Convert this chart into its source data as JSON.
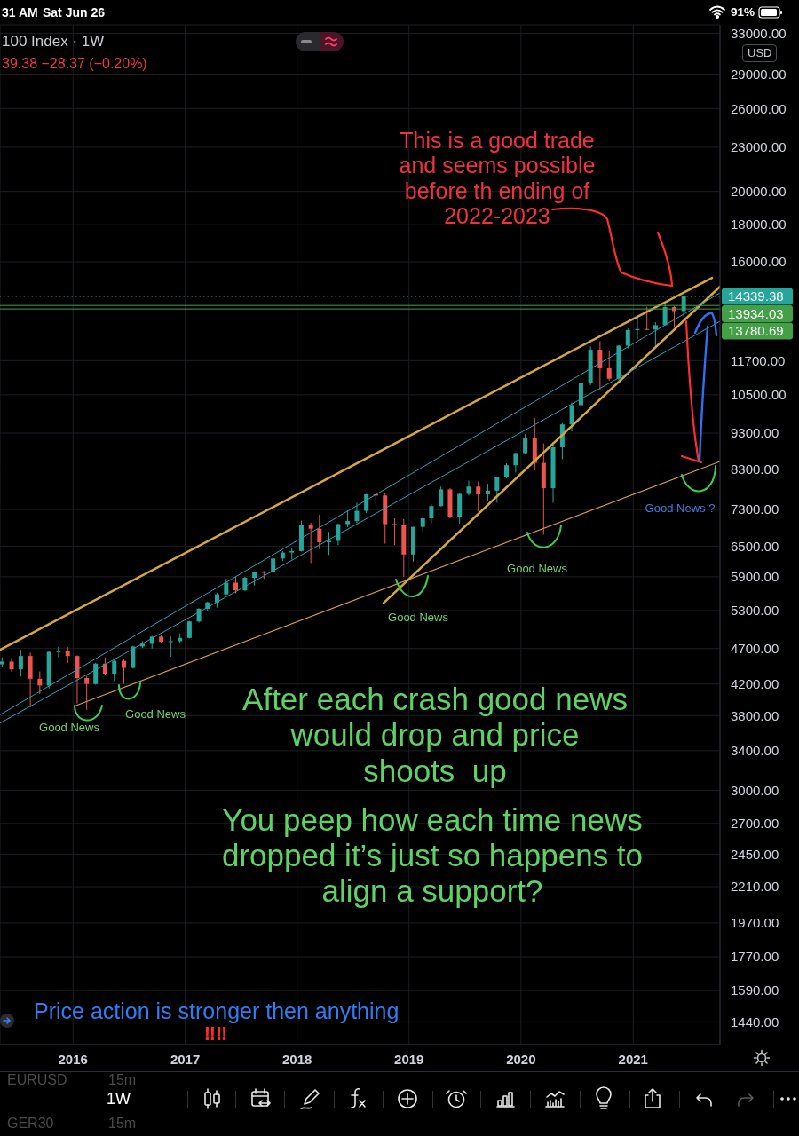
{
  "chart_data": {
    "type": "candlestick",
    "title": "100 Index · 1W",
    "subtitle": "39.38 −28.37 (−0.20%)",
    "ylabel": "USD",
    "x": [
      "2015-05-15",
      "2015-06-15",
      "2015-07-15",
      "2015-08-15",
      "2015-09-15",
      "2015-10-15",
      "2015-11-15",
      "2015-12-15",
      "2016-01-15",
      "2016-02-15",
      "2016-03-15",
      "2016-04-15",
      "2016-05-15",
      "2016-06-15",
      "2016-07-15",
      "2016-08-15",
      "2016-09-15",
      "2016-10-15",
      "2016-11-15",
      "2016-12-15",
      "2017-01-15",
      "2017-02-15",
      "2017-03-15",
      "2017-04-15",
      "2017-05-15",
      "2017-06-15",
      "2017-07-15",
      "2017-08-15",
      "2017-09-15",
      "2017-10-15",
      "2017-11-15",
      "2017-12-15",
      "2018-01-15",
      "2018-02-15",
      "2018-03-15",
      "2018-04-15",
      "2018-05-15",
      "2018-06-15",
      "2018-07-15",
      "2018-08-15",
      "2018-09-15",
      "2018-10-15",
      "2018-11-15",
      "2018-12-15",
      "2019-01-15",
      "2019-02-15",
      "2019-03-15",
      "2019-04-15",
      "2019-05-15",
      "2019-06-15",
      "2019-07-15",
      "2019-08-15",
      "2019-09-15",
      "2019-10-15",
      "2019-11-15",
      "2019-12-15",
      "2020-01-15",
      "2020-02-15",
      "2020-03-15",
      "2020-04-15",
      "2020-05-15",
      "2020-06-15",
      "2020-07-15",
      "2020-08-15",
      "2020-09-15",
      "2020-10-15",
      "2020-11-15",
      "2020-12-15",
      "2021-01-15",
      "2021-02-15",
      "2021-03-15",
      "2021-04-15",
      "2021-05-15",
      "2021-06-15"
    ],
    "ohlc": [
      [
        4470,
        4570,
        4440,
        4510
      ],
      [
        4510,
        4560,
        4370,
        4400
      ],
      [
        4400,
        4680,
        4300,
        4590
      ],
      [
        4590,
        4640,
        3900,
        4270
      ],
      [
        4270,
        4370,
        4070,
        4180
      ],
      [
        4180,
        4660,
        4140,
        4650
      ],
      [
        4650,
        4720,
        4570,
        4660
      ],
      [
        4660,
        4720,
        4490,
        4590
      ],
      [
        4590,
        4600,
        3950,
        4280
      ],
      [
        4280,
        4310,
        3870,
        4200
      ],
      [
        4200,
        4490,
        4190,
        4480
      ],
      [
        4480,
        4570,
        4320,
        4340
      ],
      [
        4340,
        4530,
        4240,
        4520
      ],
      [
        4520,
        4550,
        4200,
        4420
      ],
      [
        4420,
        4740,
        4410,
        4730
      ],
      [
        4730,
        4810,
        4710,
        4770
      ],
      [
        4770,
        4890,
        4700,
        4880
      ],
      [
        4880,
        4910,
        4790,
        4800
      ],
      [
        4800,
        4880,
        4580,
        4810
      ],
      [
        4810,
        4930,
        4780,
        4860
      ],
      [
        4860,
        5130,
        4850,
        5120
      ],
      [
        5120,
        5340,
        5100,
        5330
      ],
      [
        5330,
        5450,
        5300,
        5440
      ],
      [
        5440,
        5610,
        5350,
        5580
      ],
      [
        5580,
        5860,
        5570,
        5790
      ],
      [
        5790,
        5900,
        5600,
        5650
      ],
      [
        5650,
        5900,
        5640,
        5880
      ],
      [
        5880,
        6000,
        5740,
        5990
      ],
      [
        5990,
        6010,
        5860,
        5980
      ],
      [
        5980,
        6260,
        5970,
        6250
      ],
      [
        6250,
        6400,
        6200,
        6370
      ],
      [
        6370,
        6460,
        6230,
        6400
      ],
      [
        6400,
        7050,
        6390,
        6950
      ],
      [
        6950,
        7000,
        6160,
        6870
      ],
      [
        6870,
        7180,
        6440,
        6580
      ],
      [
        6580,
        6800,
        6320,
        6610
      ],
      [
        6610,
        6980,
        6520,
        6970
      ],
      [
        6970,
        7280,
        6900,
        7040
      ],
      [
        7040,
        7460,
        6990,
        7270
      ],
      [
        7270,
        7670,
        7220,
        7660
      ],
      [
        7660,
        7700,
        7420,
        7630
      ],
      [
        7630,
        7700,
        6550,
        6970
      ],
      [
        6970,
        7100,
        6520,
        6950
      ],
      [
        6950,
        7080,
        5900,
        6330
      ],
      [
        6330,
        6910,
        6190,
        6910
      ],
      [
        6910,
        7130,
        6800,
        7100
      ],
      [
        7100,
        7420,
        6990,
        7380
      ],
      [
        7380,
        7850,
        7370,
        7780
      ],
      [
        7780,
        7810,
        7100,
        7130
      ],
      [
        7130,
        7700,
        6980,
        7670
      ],
      [
        7670,
        8000,
        7630,
        7850
      ],
      [
        7850,
        7980,
        7250,
        7660
      ],
      [
        7660,
        7920,
        7500,
        7750
      ],
      [
        7750,
        8100,
        7460,
        8080
      ],
      [
        8080,
        8450,
        8050,
        8400
      ],
      [
        8400,
        8740,
        8210,
        8730
      ],
      [
        8730,
        9270,
        8720,
        9150
      ],
      [
        9150,
        9760,
        8260,
        8460
      ],
      [
        8460,
        9000,
        6740,
        7810
      ],
      [
        7810,
        9050,
        7460,
        8890
      ],
      [
        8890,
        9600,
        8560,
        9560
      ],
      [
        9560,
        10250,
        9350,
        10160
      ],
      [
        10160,
        11020,
        10070,
        10910
      ],
      [
        10910,
        12240,
        10830,
        12110
      ],
      [
        12110,
        12440,
        10680,
        11420
      ],
      [
        11420,
        12070,
        10980,
        11050
      ],
      [
        11050,
        12280,
        11000,
        12270
      ],
      [
        12270,
        12950,
        12160,
        12890
      ],
      [
        12890,
        13460,
        12530,
        12930
      ],
      [
        12930,
        13880,
        12880,
        12910
      ],
      [
        12910,
        13210,
        12210,
        13090
      ],
      [
        13090,
        14060,
        13070,
        13860
      ],
      [
        13860,
        13900,
        12990,
        13690
      ],
      [
        13690,
        14360,
        13450,
        14339.38
      ]
    ],
    "colors": [
      "#26a69a",
      "#ef5350",
      "#26a69a",
      "#ef5350",
      "#ef5350",
      "#26a69a",
      "#26a69a",
      "#ef5350",
      "#ef5350",
      "#ef5350",
      "#26a69a",
      "#ef5350",
      "#26a69a",
      "#ef5350",
      "#26a69a",
      "#26a69a",
      "#26a69a",
      "#ef5350",
      "#26a69a",
      "#26a69a",
      "#26a69a",
      "#26a69a",
      "#26a69a",
      "#26a69a",
      "#26a69a",
      "#ef5350",
      "#26a69a",
      "#26a69a",
      "#ef5350",
      "#26a69a",
      "#26a69a",
      "#26a69a",
      "#26a69a",
      "#ef5350",
      "#ef5350",
      "#26a69a",
      "#26a69a",
      "#26a69a",
      "#26a69a",
      "#26a69a",
      "#ef5350",
      "#ef5350",
      "#ef5350",
      "#ef5350",
      "#26a69a",
      "#26a69a",
      "#26a69a",
      "#26a69a",
      "#ef5350",
      "#26a69a",
      "#26a69a",
      "#ef5350",
      "#26a69a",
      "#26a69a",
      "#26a69a",
      "#26a69a",
      "#26a69a",
      "#ef5350",
      "#ef5350",
      "#26a69a",
      "#26a69a",
      "#26a69a",
      "#26a69a",
      "#26a69a",
      "#ef5350",
      "#ef5350",
      "#26a69a",
      "#26a69a",
      "#26a69a",
      "#ef5350",
      "#26a69a",
      "#26a69a",
      "#ef5350",
      "#26a69a"
    ],
    "series": [
      {
        "type": "line",
        "x": [
          "2015-05-08",
          "2021-09-15"
        ],
        "values": [
          4680,
          15210
        ],
        "color": "#d6a83c"
      },
      {
        "type": "line",
        "x": [
          "2018-10-10",
          "2021-10-11"
        ],
        "values": [
          5430,
          14790
        ],
        "color": "#d6a83c"
      },
      {
        "type": "line",
        "x": [
          "2016-01-09",
          "2021-10-11"
        ],
        "values": [
          3920,
          8500
        ],
        "color": "#d39b4a"
      },
      {
        "type": "line",
        "x": [
          "2015-05-08",
          "2021-10-11"
        ],
        "values": [
          3810,
          14500
        ],
        "color": "#2f9db5"
      },
      {
        "type": "line",
        "x": [
          "2015-05-08",
          "2021-10-11"
        ],
        "values": [
          3710,
          13250
        ],
        "color": "#2f9db5"
      }
    ],
    "ref_lines": [
      {
        "axis": "y",
        "value": 14339.38,
        "label": "14339.38",
        "color": "#26a69a",
        "line_style": "dotted"
      },
      {
        "axis": "y",
        "value": 13934.03,
        "label": "13934.03",
        "color": "#43a047"
      },
      {
        "axis": "y",
        "value": 13780.69,
        "label": "13780.69",
        "color": "#43a047"
      }
    ],
    "xlim": [
      "2015-05-08",
      "2021-10-11"
    ],
    "xticks": [
      "2016",
      "2017",
      "2018",
      "2019",
      "2020",
      "2021"
    ],
    "ylim": [
      1340,
      33900
    ],
    "yticks": [
      {
        "value": 1440,
        "label": "1440.00"
      },
      {
        "value": 1590,
        "label": "1590.00"
      },
      {
        "value": 1770,
        "label": "1770.00"
      },
      {
        "value": 1970,
        "label": "1970.00"
      },
      {
        "value": 2210,
        "label": "2210.00"
      },
      {
        "value": 2450,
        "label": "2450.00"
      },
      {
        "value": 2700,
        "label": "2700.00"
      },
      {
        "value": 3000,
        "label": "3000.00"
      },
      {
        "value": 3400,
        "label": "3400.00"
      },
      {
        "value": 3800,
        "label": "3800.00"
      },
      {
        "value": 4200,
        "label": "4200.00"
      },
      {
        "value": 4700,
        "label": "4700.00"
      },
      {
        "value": 5300,
        "label": "5300.00"
      },
      {
        "value": 5900,
        "label": "5900.00"
      },
      {
        "value": 6500,
        "label": "6500.00"
      },
      {
        "value": 7300,
        "label": "7300.00"
      },
      {
        "value": 8300,
        "label": "8300.00"
      },
      {
        "value": 9300,
        "label": "9300.00"
      },
      {
        "value": 10500,
        "label": "10500.00"
      },
      {
        "value": 11700,
        "label": "11700.00"
      },
      {
        "value": 16000,
        "label": "16000.00"
      },
      {
        "value": 18000,
        "label": "18000.00"
      },
      {
        "value": 20000,
        "label": "20000.00"
      },
      {
        "value": 23000,
        "label": "23000.00"
      },
      {
        "value": 26000,
        "label": "26000.00"
      },
      {
        "value": 29000,
        "label": "29000.00"
      },
      {
        "value": 33000,
        "label": "33000.00"
      }
    ],
    "log": true,
    "grid": true,
    "annotations": [
      "31 AM",
      "Sat Jun 26",
      "91%",
      "This is a good trade\nand seems possible\nbefore th ending of\n2022-2023",
      "Good News ?",
      "Good News",
      "Good News",
      "Good News",
      "Good News",
      "After each crash good news\nwould drop and price\nshoots  up",
      "You peep how each time news\ndropped it’s just so happens to\nalign a support?",
      "Price action is stronger then anything",
      "‼‼",
      "EURUSD",
      "15m",
      "GER30",
      "15m",
      "1W"
    ]
  }
}
